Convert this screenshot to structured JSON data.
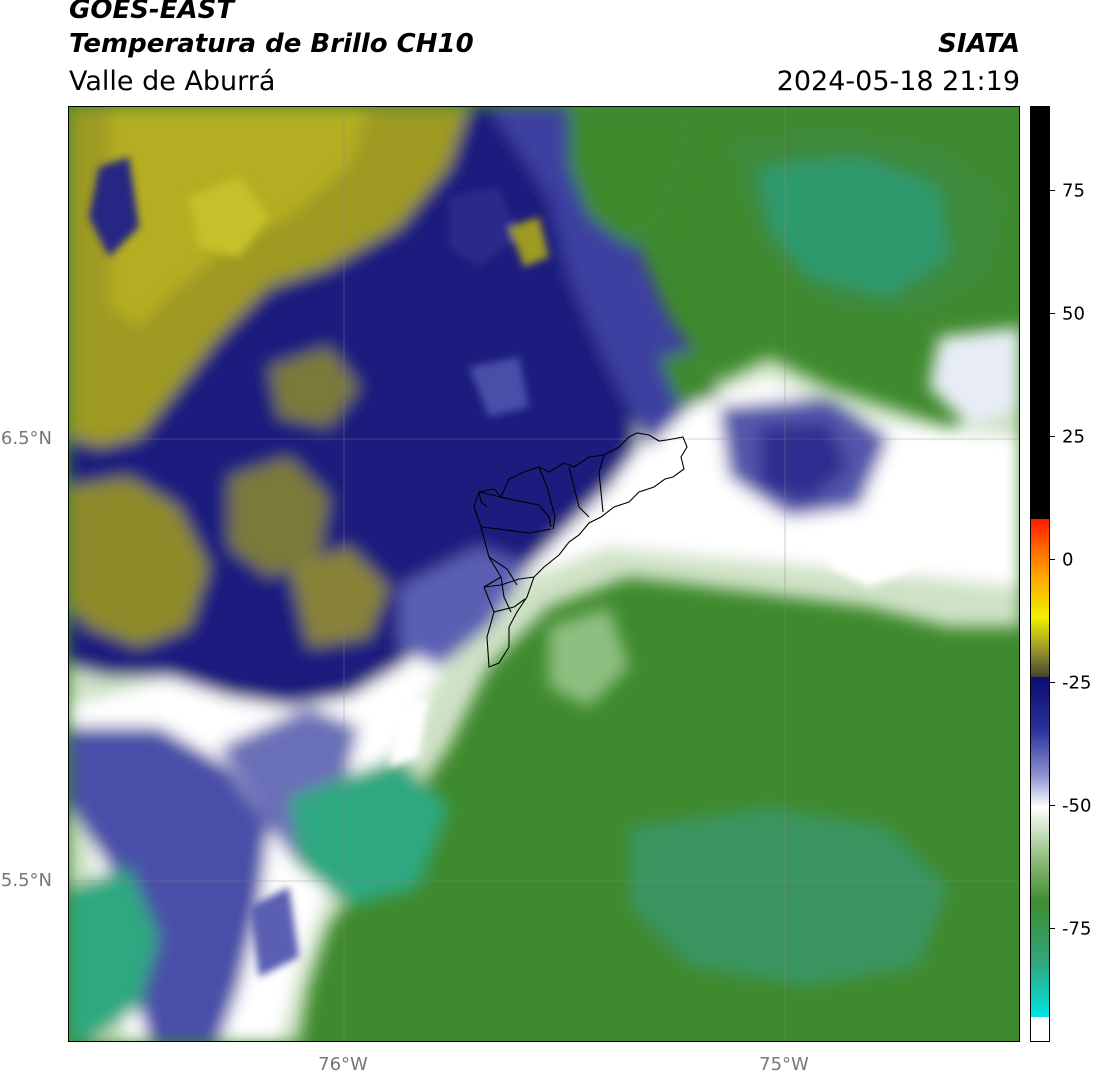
{
  "header": {
    "satellite": "GOES-EAST",
    "product": "Temperatura de Brillo CH10",
    "region": "Valle de Aburrá",
    "organization": "SIATA",
    "datetime": "2024-05-18 21:19"
  },
  "map": {
    "lat_labels": [
      "6.5°N",
      "5.5°N"
    ],
    "lon_labels": [
      "76°W",
      "75°W"
    ],
    "gridlines": true,
    "overlay": "municipality-boundaries"
  },
  "colorbar": {
    "ticks": [
      "75",
      "50",
      "25",
      "0",
      "-25",
      "-50",
      "-75"
    ],
    "colors": {
      "cyan": "#00e5e5",
      "teal": "#2fa880",
      "green": "#3f8c2f",
      "white": "#ffffff",
      "blue": "#2a2f9a",
      "navy": "#0d0d72",
      "olive": "#a8a21d",
      "yellow": "#f0f000",
      "orange": "#ff9a00",
      "red": "#ff1a00",
      "black": "#000000"
    }
  }
}
